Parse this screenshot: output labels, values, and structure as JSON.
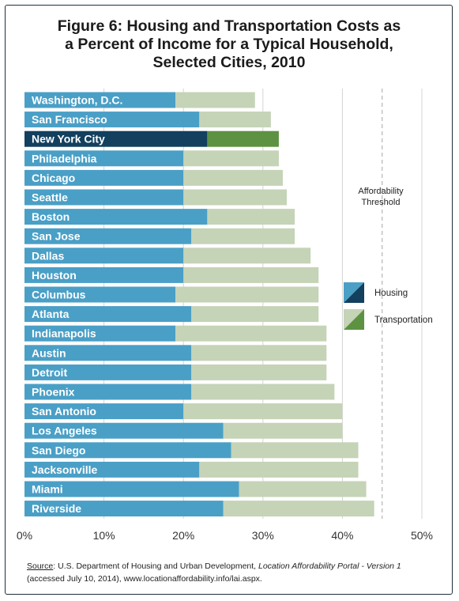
{
  "title_lines": [
    "Figure 6: Housing and Transportation Costs as",
    "a Percent of Income for a Typical Household,",
    "Selected Cities, 2010"
  ],
  "source": {
    "label": "Source",
    "text_before": ": U.S. Department of Housing and Urban Development, ",
    "publication": "Location Affordability Portal - Version 1",
    "text_after": "(accessed July 10, 2014), www.locationaffordability.info/lai.aspx."
  },
  "colors": {
    "housing": "#4a9fc6",
    "transportation": "#c5d3b7",
    "highlight_housing": "#12405e",
    "highlight_transportation": "#5d9242",
    "grid": "#d4d4d4",
    "bg": "#ffffff"
  },
  "chart_data": {
    "type": "bar",
    "orientation": "horizontal",
    "stacked": true,
    "title": "Figure 6: Housing and Transportation Costs as a Percent of Income for a Typical Household, Selected Cities, 2010",
    "categories": [
      "Washington, D.C.",
      "San Francisco",
      "New York City",
      "Philadelphia",
      "Chicago",
      "Seattle",
      "Boston",
      "San Jose",
      "Dallas",
      "Houston",
      "Columbus",
      "Atlanta",
      "Indianapolis",
      "Austin",
      "Detroit",
      "Phoenix",
      "San Antonio",
      "Los Angeles",
      "San Diego",
      "Jacksonville",
      "Miami",
      "Riverside"
    ],
    "highlight_category": "New York City",
    "series": [
      {
        "name": "Housing",
        "values": [
          19,
          22,
          23,
          20,
          20,
          20,
          23,
          21,
          20,
          20,
          19,
          21,
          19,
          21,
          21,
          21,
          20,
          25,
          26,
          22,
          27,
          25
        ]
      },
      {
        "name": "Transportation",
        "values": [
          10,
          9,
          9,
          12,
          12.5,
          13,
          11,
          13,
          16,
          17,
          18,
          16,
          19,
          17,
          17,
          18,
          20,
          15,
          16,
          20,
          16,
          19
        ]
      }
    ],
    "x_ticks": [
      "0%",
      "10%",
      "20%",
      "30%",
      "40%",
      "50%"
    ],
    "xlim": [
      0,
      50
    ],
    "affordability_threshold": 45,
    "threshold_label": [
      "Affordability",
      "Threshold"
    ],
    "legend": {
      "position": "right",
      "entries": [
        "Housing",
        "Transportation"
      ]
    },
    "grid": true
  }
}
